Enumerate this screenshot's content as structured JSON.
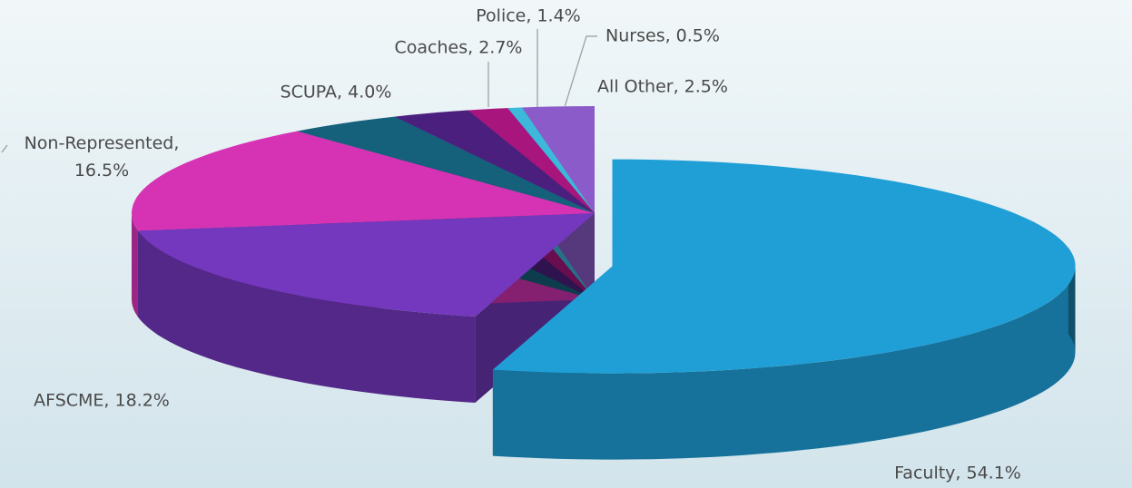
{
  "chart_data": {
    "type": "pie3d",
    "values": [
      54.1,
      18.2,
      16.5,
      4.0,
      2.7,
      1.4,
      0.5,
      2.5
    ],
    "value_labels": [
      "Faculty, 54.1%",
      "AFSCME, 18.2%",
      "Non-Represented, 16.5%",
      "SCUPA, 4.0%",
      "Coaches, 2.7%",
      "Police, 1.4%",
      "Nurses, 0.5%",
      "All Other, 2.5%"
    ],
    "colors": [
      "#1f9fd6",
      "#7338bd",
      "#d633b4",
      "#15617c",
      "#4b1f7e",
      "#a8157c",
      "#3bb8da",
      "#8a5bc9"
    ]
  }
}
